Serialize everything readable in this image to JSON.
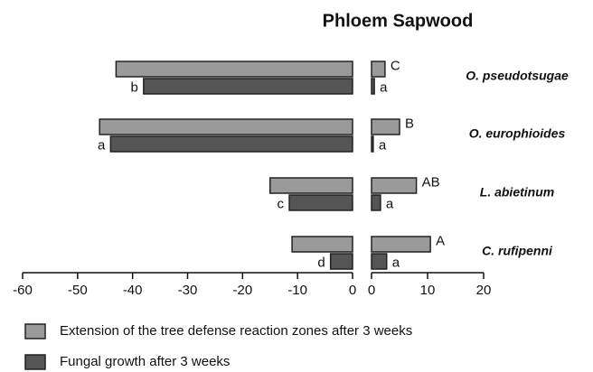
{
  "chart_data": {
    "type": "bar",
    "orientation": "horizontal",
    "title": "Phloem Sapwood",
    "categories": [
      "O. pseudotsugae",
      "O. europhioides",
      "L. abietinum",
      "C. rufipenni"
    ],
    "legend": [
      {
        "name": "Extension of the tree defense reaction zones after 3 weeks",
        "color": "#9a9a9a"
      },
      {
        "name": "Fungal growth after 3 weeks",
        "color": "#555555"
      }
    ],
    "panels": [
      {
        "xlim": [
          -60,
          0
        ],
        "xticks": [
          -60,
          -50,
          -40,
          -30,
          -20,
          -10,
          0
        ],
        "series": [
          {
            "values": [
              -43,
              -46,
              -15,
              -11
            ]
          },
          {
            "values": [
              -38,
              -44,
              -11.5,
              -4
            ],
            "annotations": [
              "b",
              "a",
              "c",
              "d"
            ]
          }
        ]
      },
      {
        "xlim": [
          0,
          20
        ],
        "xticks": [
          0,
          10,
          20
        ],
        "series": [
          {
            "values": [
              2.4,
              5,
              8,
              10.5
            ],
            "annotations": [
              "C",
              "B",
              "AB",
              "A"
            ]
          },
          {
            "values": [
              0.5,
              0.3,
              1.6,
              2.7
            ],
            "annotations": [
              "a",
              "a",
              "a",
              "a"
            ]
          }
        ]
      }
    ]
  }
}
